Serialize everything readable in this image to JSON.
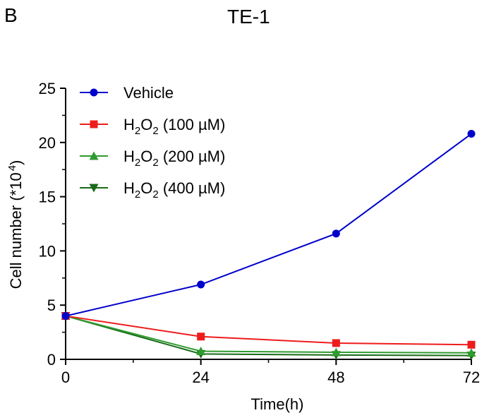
{
  "panel_label": "B",
  "chart_data": {
    "type": "line",
    "title": "TE-1",
    "xlabel": "Time(h)",
    "ylabel": "Cell number (*10",
    "ylabel_sup": "4",
    "ylabel_close": ")",
    "x": [
      0,
      24,
      48,
      72
    ],
    "xlim": [
      0,
      72
    ],
    "ylim": [
      0,
      25
    ],
    "xticks": [
      "0",
      "24",
      "48",
      "72"
    ],
    "yticks": [
      "0",
      "5",
      "10",
      "15",
      "20",
      "25"
    ],
    "grid": false,
    "legend_position": "top-left",
    "series": [
      {
        "name": "Vehicle",
        "legend": {
          "pre": "Vehicle",
          "sub1": "",
          "mid": "",
          "sub2": "",
          "post": ""
        },
        "color": "#0000cc",
        "marker": "circle",
        "values": [
          4.0,
          6.9,
          11.6,
          20.8
        ]
      },
      {
        "name": "H2O2 (100 µM)",
        "legend": {
          "pre": "H",
          "sub1": "2",
          "mid": "O",
          "sub2": "2",
          "post": " (100 µM)"
        },
        "color": "#ee1c1c",
        "marker": "square",
        "values": [
          4.0,
          2.1,
          1.5,
          1.35
        ]
      },
      {
        "name": "H2O2 (200 µM)",
        "legend": {
          "pre": "H",
          "sub1": "2",
          "mid": "O",
          "sub2": "2",
          "post": " (200 µM)"
        },
        "color": "#2e9b2e",
        "marker": "triangle-up",
        "values": [
          4.0,
          0.75,
          0.65,
          0.6
        ]
      },
      {
        "name": "H2O2 (400 µM)",
        "legend": {
          "pre": "H",
          "sub1": "2",
          "mid": "O",
          "sub2": "2",
          "post": " (400 µM)"
        },
        "color": "#176b17",
        "marker": "triangle-down",
        "values": [
          4.0,
          0.5,
          0.4,
          0.35
        ]
      }
    ]
  }
}
